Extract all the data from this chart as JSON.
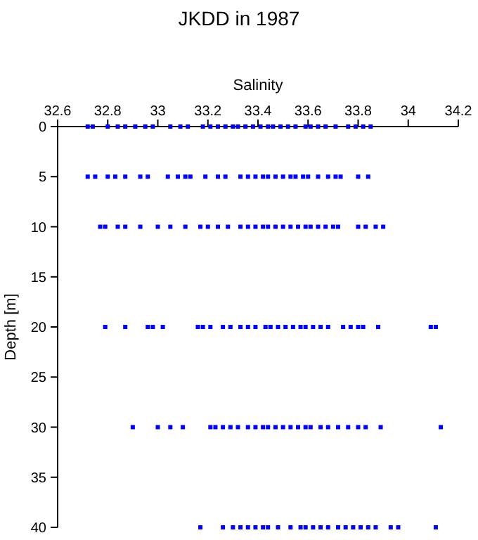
{
  "chart_data": {
    "type": "scatter",
    "title": "JKDD in 1987",
    "xlabel": "Salinity",
    "ylabel": "Depth [m]",
    "xlim": [
      32.6,
      34.2
    ],
    "xticks": [
      32.6,
      32.8,
      33,
      33.2,
      33.4,
      33.6,
      33.8,
      34,
      34.2
    ],
    "ylim": [
      40,
      0
    ],
    "yticks": [
      0,
      5,
      10,
      15,
      20,
      25,
      30,
      35,
      40
    ],
    "grid": false,
    "marker": "square",
    "series": [
      {
        "color": "#0000ff",
        "x": [
          32.72,
          32.74,
          32.8,
          32.84,
          32.87,
          32.91,
          32.95,
          32.98,
          33.05,
          33.09,
          33.12,
          33.18,
          33.21,
          33.24,
          33.27,
          33.3,
          33.32,
          33.35,
          33.38,
          33.41,
          33.44,
          33.46,
          33.49,
          33.52,
          33.55,
          33.59,
          33.61,
          33.64,
          33.67,
          33.71,
          33.76,
          33.79,
          33.82,
          33.85
        ],
        "values": [
          0,
          0,
          0,
          0,
          0,
          0,
          0,
          0,
          0,
          0,
          0,
          0,
          0,
          0,
          0,
          0,
          0,
          0,
          0,
          0,
          0,
          0,
          0,
          0,
          0,
          0,
          0,
          0,
          0,
          0,
          0,
          0,
          0,
          0
        ]
      },
      {
        "color": "#0000ff",
        "x": [
          32.72,
          32.75,
          32.8,
          32.83,
          32.87,
          32.93,
          32.96,
          33.04,
          33.08,
          33.11,
          33.13,
          33.19,
          33.24,
          33.27,
          33.33,
          33.36,
          33.39,
          33.42,
          33.44,
          33.47,
          33.5,
          33.53,
          33.55,
          33.58,
          33.6,
          33.64,
          33.68,
          33.71,
          33.73,
          33.8,
          33.84
        ],
        "values": [
          5,
          5,
          5,
          5,
          5,
          5,
          5,
          5,
          5,
          5,
          5,
          5,
          5,
          5,
          5,
          5,
          5,
          5,
          5,
          5,
          5,
          5,
          5,
          5,
          5,
          5,
          5,
          5,
          5,
          5,
          5
        ]
      },
      {
        "color": "#0000ff",
        "x": [
          32.77,
          32.79,
          32.84,
          32.87,
          32.93,
          33,
          33.05,
          33.11,
          33.17,
          33.2,
          33.24,
          33.28,
          33.33,
          33.36,
          33.39,
          33.42,
          33.44,
          33.47,
          33.5,
          33.53,
          33.56,
          33.59,
          33.61,
          33.64,
          33.67,
          33.7,
          33.72,
          33.8,
          33.83,
          33.87,
          33.9
        ],
        "values": [
          10,
          10,
          10,
          10,
          10,
          10,
          10,
          10,
          10,
          10,
          10,
          10,
          10,
          10,
          10,
          10,
          10,
          10,
          10,
          10,
          10,
          10,
          10,
          10,
          10,
          10,
          10,
          10,
          10,
          10,
          10
        ]
      },
      {
        "color": "#0000ff",
        "x": [
          32.79,
          32.87,
          32.96,
          32.98,
          33.02,
          33.16,
          33.18,
          33.21,
          33.26,
          33.29,
          33.33,
          33.36,
          33.39,
          33.43,
          33.45,
          33.48,
          33.51,
          33.54,
          33.57,
          33.59,
          33.62,
          33.65,
          33.68,
          33.74,
          33.77,
          33.8,
          33.82,
          33.88,
          34.09,
          34.11
        ],
        "values": [
          20,
          20,
          20,
          20,
          20,
          20,
          20,
          20,
          20,
          20,
          20,
          20,
          20,
          20,
          20,
          20,
          20,
          20,
          20,
          20,
          20,
          20,
          20,
          20,
          20,
          20,
          20,
          20,
          20,
          20
        ]
      },
      {
        "color": "#0000ff",
        "x": [
          32.9,
          33,
          33.05,
          33.1,
          33.21,
          33.23,
          33.26,
          33.29,
          33.32,
          33.36,
          33.39,
          33.42,
          33.44,
          33.47,
          33.5,
          33.53,
          33.56,
          33.59,
          33.61,
          33.65,
          33.68,
          33.72,
          33.76,
          33.8,
          33.83,
          33.89,
          34.13
        ],
        "values": [
          30,
          30,
          30,
          30,
          30,
          30,
          30,
          30,
          30,
          30,
          30,
          30,
          30,
          30,
          30,
          30,
          30,
          30,
          30,
          30,
          30,
          30,
          30,
          30,
          30,
          30,
          30
        ]
      },
      {
        "color": "#0000ff",
        "x": [
          33.17,
          33.26,
          33.3,
          33.33,
          33.36,
          33.39,
          33.42,
          33.44,
          33.48,
          33.53,
          33.57,
          33.59,
          33.62,
          33.65,
          33.68,
          33.72,
          33.75,
          33.78,
          33.81,
          33.84,
          33.87,
          33.93,
          33.96,
          34.11
        ],
        "values": [
          40,
          40,
          40,
          40,
          40,
          40,
          40,
          40,
          40,
          40,
          40,
          40,
          40,
          40,
          40,
          40,
          40,
          40,
          40,
          40,
          40,
          40,
          40,
          40
        ]
      }
    ]
  }
}
